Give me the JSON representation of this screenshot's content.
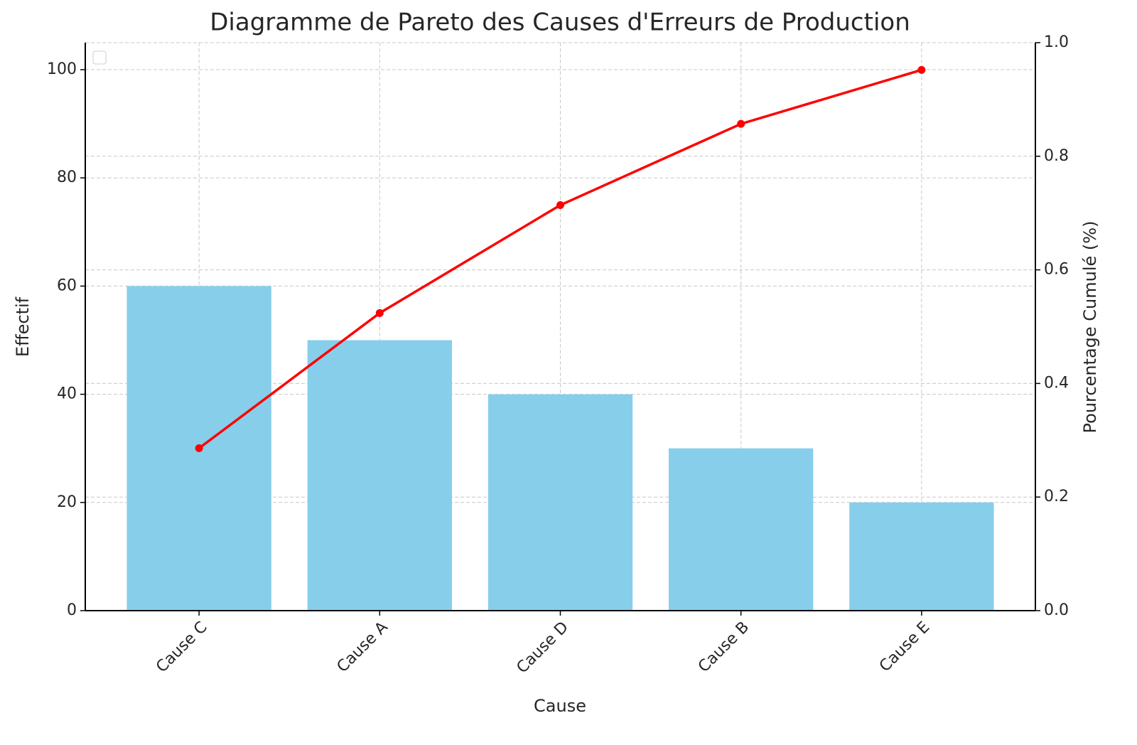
{
  "chart_data": {
    "type": "pareto",
    "title": "Diagramme de Pareto des Causes d'Erreurs de Production",
    "xlabel": "Cause",
    "ylabel": "Effectif",
    "y2label": "Pourcentage Cumulé (%)",
    "categories": [
      "Cause C",
      "Cause A",
      "Cause D",
      "Cause B",
      "Cause E"
    ],
    "series": [
      {
        "type": "bar",
        "color": "#87ceeb",
        "values": [
          60,
          50,
          40,
          30,
          20
        ]
      },
      {
        "type": "line",
        "color": "#ff0000",
        "axis": "y2",
        "values": [
          0.286,
          0.524,
          0.714,
          0.857,
          0.952
        ]
      }
    ],
    "ylim": [
      0,
      105
    ],
    "yticks": [
      0,
      20,
      40,
      60,
      80,
      100
    ],
    "y2lim": [
      0,
      1
    ],
    "y2ticks": [
      {
        "value": 0,
        "label": "0.0"
      },
      0.2,
      0.4,
      0.6,
      0.8,
      {
        "value": 1,
        "label": "1.0"
      }
    ],
    "grid": true
  }
}
